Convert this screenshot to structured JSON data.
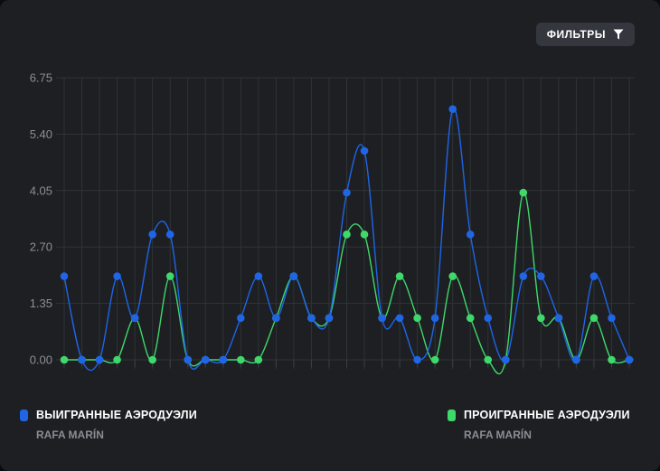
{
  "filter_button": {
    "label": "ФИЛЬТРЫ",
    "icon": "filter-icon"
  },
  "colors": {
    "background": "#1d1f23",
    "grid": "#2f3436",
    "series_won": "#1f65e6",
    "series_lost": "#3fd86a"
  },
  "legend": {
    "won": {
      "label": "ВЫИГРАННЫЕ АЭРОДУЭЛИ",
      "player": "RAFA MARÍN"
    },
    "lost": {
      "label": "ПРОИГРАННЫЕ АЭРОДУЭЛИ",
      "player": "RAFA MARÍN"
    }
  },
  "chart_data": {
    "type": "line",
    "smooth": true,
    "grid": true,
    "title": "",
    "xlabel": "",
    "ylabel": "",
    "ylim": [
      0,
      6.75
    ],
    "y_ticks": [
      "0.00",
      "1.35",
      "2.70",
      "4.05",
      "5.40",
      "6.75"
    ],
    "x": [
      1,
      2,
      3,
      4,
      5,
      6,
      7,
      8,
      9,
      10,
      11,
      12,
      13,
      14,
      15,
      16,
      17,
      18,
      19,
      20,
      21,
      22,
      23,
      24,
      25,
      26,
      27,
      28,
      29,
      30,
      31,
      32,
      33
    ],
    "series": [
      {
        "name": "ВЫИГРАННЫЕ АЭРОДУЭЛИ",
        "color": "#1f65e6",
        "values": [
          2,
          0,
          0,
          2,
          1,
          3,
          3,
          0,
          0,
          0,
          1,
          2,
          1,
          2,
          1,
          1,
          4,
          5,
          1,
          1,
          0,
          1,
          6,
          3,
          1,
          0,
          2,
          2,
          1,
          0,
          2,
          1,
          0
        ]
      },
      {
        "name": "ПРОИГРАННЫЕ АЭРОДУЭЛИ",
        "color": "#3fd86a",
        "values": [
          0,
          0,
          0,
          0,
          1,
          0,
          2,
          0,
          0,
          0,
          0,
          0,
          1,
          2,
          1,
          1,
          3,
          3,
          1,
          2,
          1,
          0,
          2,
          1,
          0,
          0,
          4,
          1,
          1,
          0,
          1,
          0,
          0
        ]
      }
    ]
  }
}
